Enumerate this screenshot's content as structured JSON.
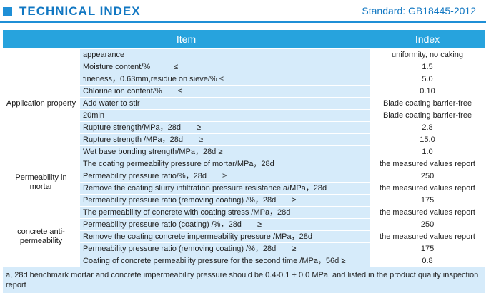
{
  "header": {
    "title": "TECHNICAL INDEX",
    "standard": "Standard: GB18445-2012"
  },
  "table": {
    "columns": [
      "Item",
      "Index"
    ],
    "groups": [
      {
        "label": "Application property",
        "rows": [
          {
            "item": "appearance",
            "index": "uniformity, no caking"
          },
          {
            "item": "Moisture content/%　　　≤",
            "index": "1.5"
          },
          {
            "item": "fineness，0.63mm,residue on sieve/%  ≤",
            "index": "5.0"
          },
          {
            "item": "Chlorine ion content/%　　≤",
            "index": "0.10"
          },
          {
            "item": "Add water to stir",
            "index": "Blade coating barrier-free"
          },
          {
            "item": "20min",
            "index": "Blade coating barrier-free"
          },
          {
            "item": "Rupture strength/MPa，28d　　≥",
            "index": "2.8"
          },
          {
            "item": "Rupture strength /MPa，28d　　≥",
            "index": "15.0"
          },
          {
            "item": "Wet base bonding strength/MPa，28d  ≥",
            "index": "1.0"
          }
        ]
      },
      {
        "label": "Permeability in mortar",
        "rows": [
          {
            "item": "The coating permeability pressure of mortar/MPa，28d",
            "index": "the measured values report"
          },
          {
            "item": "Permeability pressure ratio/%，28d　　≥",
            "index": "250"
          },
          {
            "item": "Remove the coating slurry infiltration pressure resistance a/MPa，28d",
            "index": "the measured values report"
          },
          {
            "item": "Permeability pressure ratio (removing coating) /%，28d　　≥",
            "index": "175"
          }
        ]
      },
      {
        "label": "concrete anti-permeability",
        "rows": [
          {
            "item": "The permeability of concrete with coating stress /MPa，28d",
            "index": "the measured values report"
          },
          {
            "item": "Permeability pressure ratio (coating) /%，28d　　≥",
            "index": "250"
          },
          {
            "item": "Remove the coating concrete impermeability pressure /MPa，28d",
            "index": "the measured values report"
          },
          {
            "item": "Permeability pressure ratio (removing coating) /%，28d　　≥",
            "index": "175"
          },
          {
            "item": "Coating of concrete permeability pressure for the second time /MPa，56d  ≥",
            "index": "0.8"
          }
        ]
      }
    ],
    "note": "a, 28d benchmark mortar and concrete impermeability pressure should be 0.4-0.1 + 0.0 MPa, and listed in the product quality inspection report"
  },
  "colors": {
    "accent": "#1177c2",
    "header_bg": "#27a3dd",
    "row_bg": "#d6ebfa"
  }
}
